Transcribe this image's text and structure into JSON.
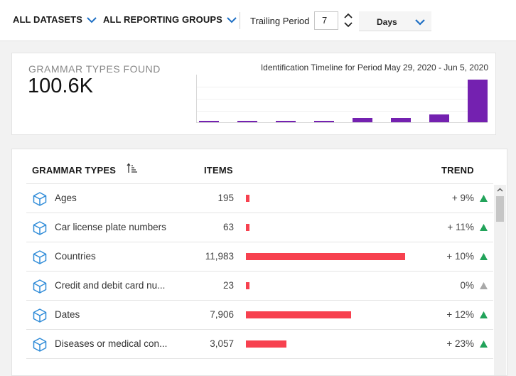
{
  "filters": {
    "datasets_label": "ALL DATASETS",
    "reporting_groups_label": "ALL REPORTING GROUPS",
    "trailing_period_label": "Trailing Period",
    "trailing_period_value": "7",
    "period_unit": "Days"
  },
  "summary": {
    "title": "GRAMMAR TYPES FOUND",
    "value": "100.6K",
    "timeline_title": "Identification Timeline for Period May 29, 2020 - Jun 5, 2020",
    "bar_color": "#7421b0",
    "timeline_values": [
      1,
      1,
      1,
      1,
      5.5,
      5.5,
      10,
      53
    ]
  },
  "table": {
    "headers": {
      "type": "GRAMMAR TYPES",
      "items": "ITEMS",
      "trend": "TREND"
    },
    "bar_color": "#f7414f",
    "rows": [
      {
        "name": "Ages",
        "count": "195",
        "count_value": 195,
        "trend": "+ 9%",
        "direction": "up"
      },
      {
        "name": "Car license plate numbers",
        "count": "63",
        "count_value": 63,
        "trend": "+ 11%",
        "direction": "up"
      },
      {
        "name": "Countries",
        "count": "11,983",
        "count_value": 11983,
        "trend": "+ 10%",
        "direction": "up"
      },
      {
        "name": "Credit and debit card nu...",
        "count": "23",
        "count_value": 23,
        "trend": "0%",
        "direction": "flat"
      },
      {
        "name": "Dates",
        "count": "7,906",
        "count_value": 7906,
        "trend": "+ 12%",
        "direction": "up"
      },
      {
        "name": "Diseases or medical con...",
        "count": "3,057",
        "count_value": 3057,
        "trend": "+ 23%",
        "direction": "up"
      }
    ]
  },
  "colors": {
    "trend_up": "#22a35a",
    "trend_flat": "#a9a9a9",
    "icon_blue": "#2e8bd8",
    "chevron": "#1e6fc4"
  }
}
